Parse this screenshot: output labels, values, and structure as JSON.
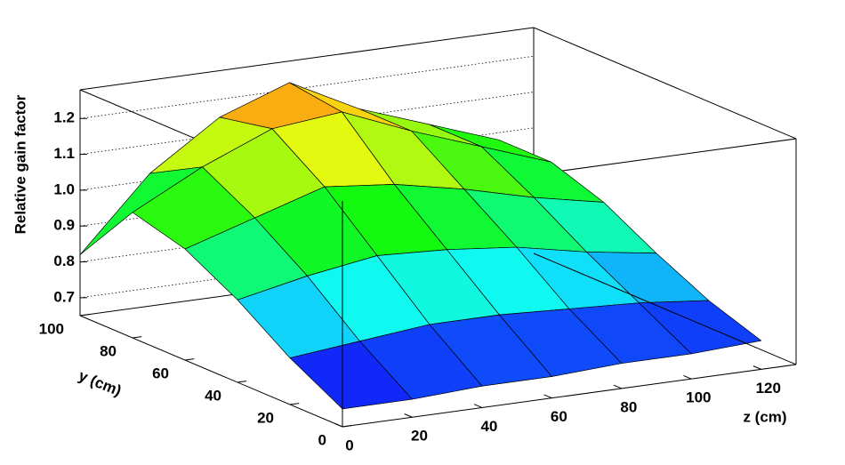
{
  "chart_data": {
    "type": "surface",
    "z_label": "Relative gain factor",
    "x_label": "z (cm)",
    "y_label": "y (cm)",
    "x": [
      0,
      20,
      40,
      60,
      80,
      100,
      120
    ],
    "y": [
      0,
      20,
      40,
      60,
      80,
      100
    ],
    "values": [
      [
        0.7,
        0.7,
        0.71,
        0.71,
        0.72,
        0.72,
        0.73
      ],
      [
        0.78,
        0.8,
        0.82,
        0.82,
        0.81,
        0.8,
        0.78
      ],
      [
        0.88,
        0.92,
        0.95,
        0.94,
        0.92,
        0.88,
        0.85
      ],
      [
        0.96,
        1.02,
        1.08,
        1.06,
        1.02,
        0.97,
        0.93
      ],
      [
        1.0,
        1.1,
        1.18,
        1.2,
        1.12,
        1.05,
        0.98
      ],
      [
        0.82,
        1.02,
        1.15,
        1.22,
        1.12,
        1.05,
        0.98
      ]
    ],
    "xlim": [
      0,
      130
    ],
    "xticks": [
      0,
      20,
      40,
      60,
      80,
      100,
      120
    ],
    "ylim": [
      0,
      100
    ],
    "yticks": [
      0,
      20,
      40,
      60,
      80,
      100
    ],
    "zlim": [
      0.65,
      1.28
    ],
    "zticks": [
      0.7,
      0.8,
      0.9,
      {
        "value": 1,
        "label": "1.0"
      },
      1.1,
      1.2
    ],
    "grid": true,
    "colormap": "rainbow"
  }
}
